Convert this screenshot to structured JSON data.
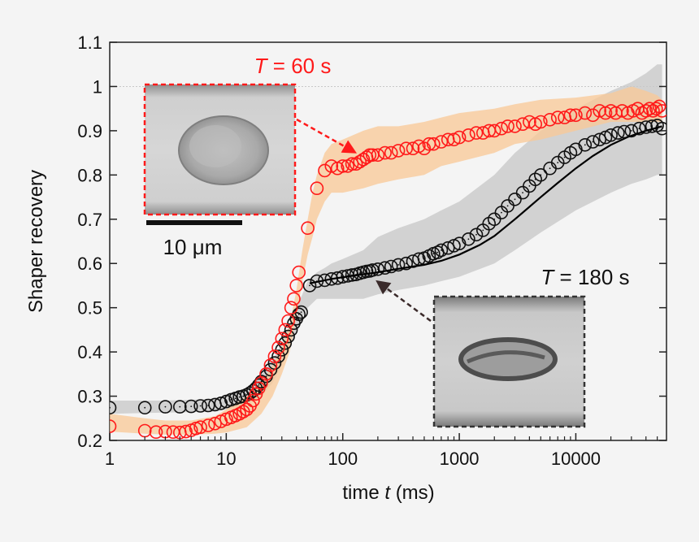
{
  "chart_data": {
    "type": "scatter",
    "xscale": "log",
    "xlim": [
      1,
      60000
    ],
    "ylim": [
      0.2,
      1.1
    ],
    "xticks": [
      "1",
      "10",
      "100",
      "1000",
      "10000"
    ],
    "yticks": [
      "0.2",
      "0.3",
      "0.4",
      "0.5",
      "0.6",
      "0.7",
      "0.8",
      "0.9",
      "1",
      "1.1"
    ],
    "xlabel_main": "time",
    "xlabel_var": "t",
    "xlabel_unit": "(ms)",
    "ylabel": "Shaper recovery",
    "reference_line_y": 1,
    "grid": false,
    "colors": {
      "series_60s": "#ff1a1a",
      "band_60s": "#f9c896",
      "series_180s": "#111111",
      "band_180s": "#c9c9c9",
      "frame_60s": "#ff1a1a",
      "frame_180s": "#333333"
    },
    "series": [
      {
        "name_var": "T",
        "name_value": "= 60 s",
        "x": [
          1,
          2,
          2.5,
          3,
          3.5,
          4,
          4.5,
          5,
          5.5,
          6,
          7,
          8,
          9,
          10,
          11,
          12,
          13,
          14,
          15,
          16,
          17,
          18,
          19,
          20,
          22,
          24,
          26,
          28,
          30,
          32,
          34,
          36,
          38,
          40,
          42,
          50,
          60,
          70,
          80,
          90,
          100,
          110,
          120,
          130,
          140,
          150,
          160,
          170,
          180,
          200,
          230,
          260,
          300,
          350,
          400,
          450,
          500,
          550,
          600,
          700,
          800,
          900,
          1000,
          1200,
          1400,
          1600,
          1800,
          2000,
          2300,
          2600,
          3000,
          3500,
          4000,
          4500,
          5000,
          6000,
          7000,
          8000,
          9000,
          10000,
          12000,
          14000,
          16000,
          18000,
          20000,
          22000,
          25000,
          28000,
          31000,
          34000,
          37000,
          40000,
          43000,
          46000,
          49000,
          52000,
          55000
        ],
        "y": [
          0.232,
          0.222,
          0.219,
          0.22,
          0.219,
          0.218,
          0.22,
          0.223,
          0.227,
          0.23,
          0.234,
          0.238,
          0.243,
          0.248,
          0.252,
          0.256,
          0.26,
          0.265,
          0.27,
          0.278,
          0.29,
          0.305,
          0.318,
          0.33,
          0.35,
          0.37,
          0.39,
          0.41,
          0.43,
          0.45,
          0.47,
          0.5,
          0.52,
          0.55,
          0.58,
          0.68,
          0.77,
          0.81,
          0.82,
          0.815,
          0.82,
          0.82,
          0.825,
          0.825,
          0.83,
          0.835,
          0.84,
          0.845,
          0.845,
          0.845,
          0.85,
          0.85,
          0.855,
          0.86,
          0.86,
          0.865,
          0.86,
          0.87,
          0.87,
          0.875,
          0.88,
          0.88,
          0.885,
          0.89,
          0.895,
          0.895,
          0.9,
          0.9,
          0.905,
          0.91,
          0.91,
          0.915,
          0.92,
          0.915,
          0.92,
          0.925,
          0.93,
          0.93,
          0.935,
          0.935,
          0.94,
          0.935,
          0.945,
          0.94,
          0.945,
          0.94,
          0.945,
          0.94,
          0.945,
          0.95,
          0.94,
          0.945,
          0.95,
          0.945,
          0.95,
          0.955,
          0.945
        ]
      },
      {
        "name_var": "T",
        "name_value": "= 180 s",
        "x": [
          1,
          2,
          3,
          4,
          5,
          6,
          7,
          8,
          9,
          10,
          11,
          12,
          13,
          14,
          15,
          16,
          17,
          18,
          19,
          20,
          22,
          24,
          26,
          28,
          30,
          32,
          34,
          36,
          38,
          40,
          42,
          44,
          52,
          60,
          70,
          80,
          90,
          100,
          110,
          120,
          130,
          140,
          150,
          160,
          170,
          180,
          200,
          230,
          260,
          300,
          350,
          400,
          450,
          500,
          550,
          600,
          650,
          700,
          800,
          900,
          1000,
          1200,
          1400,
          1600,
          1800,
          2000,
          2300,
          2600,
          3000,
          3500,
          4000,
          4500,
          5000,
          6000,
          7000,
          8000,
          9000,
          10000,
          12000,
          14000,
          16000,
          18000,
          20000,
          23000,
          26000,
          30000,
          35000,
          40000,
          45000,
          50000,
          55000
        ],
        "y": [
          0.274,
          0.274,
          0.276,
          0.276,
          0.277,
          0.278,
          0.279,
          0.281,
          0.284,
          0.288,
          0.292,
          0.295,
          0.298,
          0.3,
          0.303,
          0.307,
          0.312,
          0.318,
          0.325,
          0.333,
          0.345,
          0.36,
          0.375,
          0.39,
          0.405,
          0.42,
          0.435,
          0.45,
          0.465,
          0.475,
          0.485,
          0.49,
          0.55,
          0.56,
          0.562,
          0.565,
          0.567,
          0.57,
          0.572,
          0.574,
          0.575,
          0.578,
          0.58,
          0.582,
          0.583,
          0.585,
          0.587,
          0.59,
          0.593,
          0.597,
          0.6,
          0.605,
          0.61,
          0.612,
          0.617,
          0.622,
          0.625,
          0.63,
          0.635,
          0.64,
          0.645,
          0.655,
          0.665,
          0.675,
          0.69,
          0.7,
          0.715,
          0.73,
          0.745,
          0.76,
          0.775,
          0.79,
          0.8,
          0.815,
          0.828,
          0.84,
          0.85,
          0.858,
          0.868,
          0.875,
          0.88,
          0.885,
          0.89,
          0.895,
          0.898,
          0.9,
          0.905,
          0.908,
          0.91,
          0.912,
          0.905
        ]
      }
    ],
    "bands": [
      {
        "series": 0,
        "x": [
          1,
          2,
          3,
          5,
          8,
          10,
          15,
          20,
          25,
          30,
          35,
          40,
          45,
          50,
          55,
          60,
          70,
          80,
          100,
          150,
          200,
          300,
          500,
          700,
          1000,
          2000,
          3000,
          5000,
          10000,
          20000,
          30000,
          40000,
          50000,
          55000
        ],
        "low": [
          0.22,
          0.215,
          0.213,
          0.213,
          0.215,
          0.218,
          0.23,
          0.26,
          0.3,
          0.35,
          0.4,
          0.48,
          0.56,
          0.62,
          0.66,
          0.7,
          0.74,
          0.76,
          0.76,
          0.77,
          0.78,
          0.79,
          0.8,
          0.82,
          0.83,
          0.85,
          0.87,
          0.88,
          0.9,
          0.92,
          0.92,
          0.92,
          0.92,
          0.92
        ],
        "high": [
          0.26,
          0.25,
          0.245,
          0.245,
          0.255,
          0.27,
          0.3,
          0.33,
          0.37,
          0.41,
          0.46,
          0.54,
          0.63,
          0.7,
          0.76,
          0.8,
          0.85,
          0.87,
          0.88,
          0.9,
          0.91,
          0.91,
          0.92,
          0.93,
          0.94,
          0.95,
          0.96,
          0.97,
          0.975,
          0.985,
          1.0,
          0.99,
          0.98,
          0.97
        ]
      },
      {
        "series": 1,
        "x": [
          1,
          2,
          3,
          5,
          8,
          10,
          15,
          20,
          25,
          30,
          35,
          40,
          45,
          50,
          60,
          70,
          80,
          100,
          150,
          200,
          300,
          500,
          700,
          1000,
          2000,
          3000,
          5000,
          10000,
          20000,
          30000,
          40000,
          50000,
          55000
        ],
        "low": [
          0.26,
          0.262,
          0.263,
          0.264,
          0.265,
          0.27,
          0.28,
          0.3,
          0.33,
          0.37,
          0.41,
          0.45,
          0.48,
          0.5,
          0.52,
          0.52,
          0.52,
          0.52,
          0.52,
          0.53,
          0.54,
          0.55,
          0.56,
          0.57,
          0.6,
          0.63,
          0.67,
          0.72,
          0.76,
          0.78,
          0.79,
          0.8,
          0.8
        ],
        "high": [
          0.29,
          0.29,
          0.29,
          0.292,
          0.295,
          0.3,
          0.32,
          0.35,
          0.38,
          0.42,
          0.46,
          0.5,
          0.53,
          0.56,
          0.58,
          0.59,
          0.6,
          0.61,
          0.63,
          0.66,
          0.68,
          0.7,
          0.72,
          0.74,
          0.8,
          0.85,
          0.9,
          0.95,
          0.99,
          1.01,
          1.03,
          1.05,
          1.05
        ]
      }
    ],
    "fit_line_180s": {
      "x": [
        52,
        80,
        120,
        200,
        300,
        500,
        700,
        1000,
        1500,
        2000,
        3000,
        4000,
        5000,
        7000,
        10000,
        14000,
        20000,
        28000,
        40000,
        55000
      ],
      "y": [
        0.555,
        0.565,
        0.572,
        0.58,
        0.588,
        0.597,
        0.606,
        0.62,
        0.642,
        0.662,
        0.7,
        0.728,
        0.75,
        0.782,
        0.815,
        0.843,
        0.868,
        0.886,
        0.9,
        0.91
      ]
    },
    "insets": [
      {
        "series_label_var": "T",
        "series_label_value": "= 60 s"
      },
      {
        "series_label_var": "T",
        "series_label_value": "= 180 s"
      }
    ],
    "scale_bar_label": "10 μm"
  }
}
